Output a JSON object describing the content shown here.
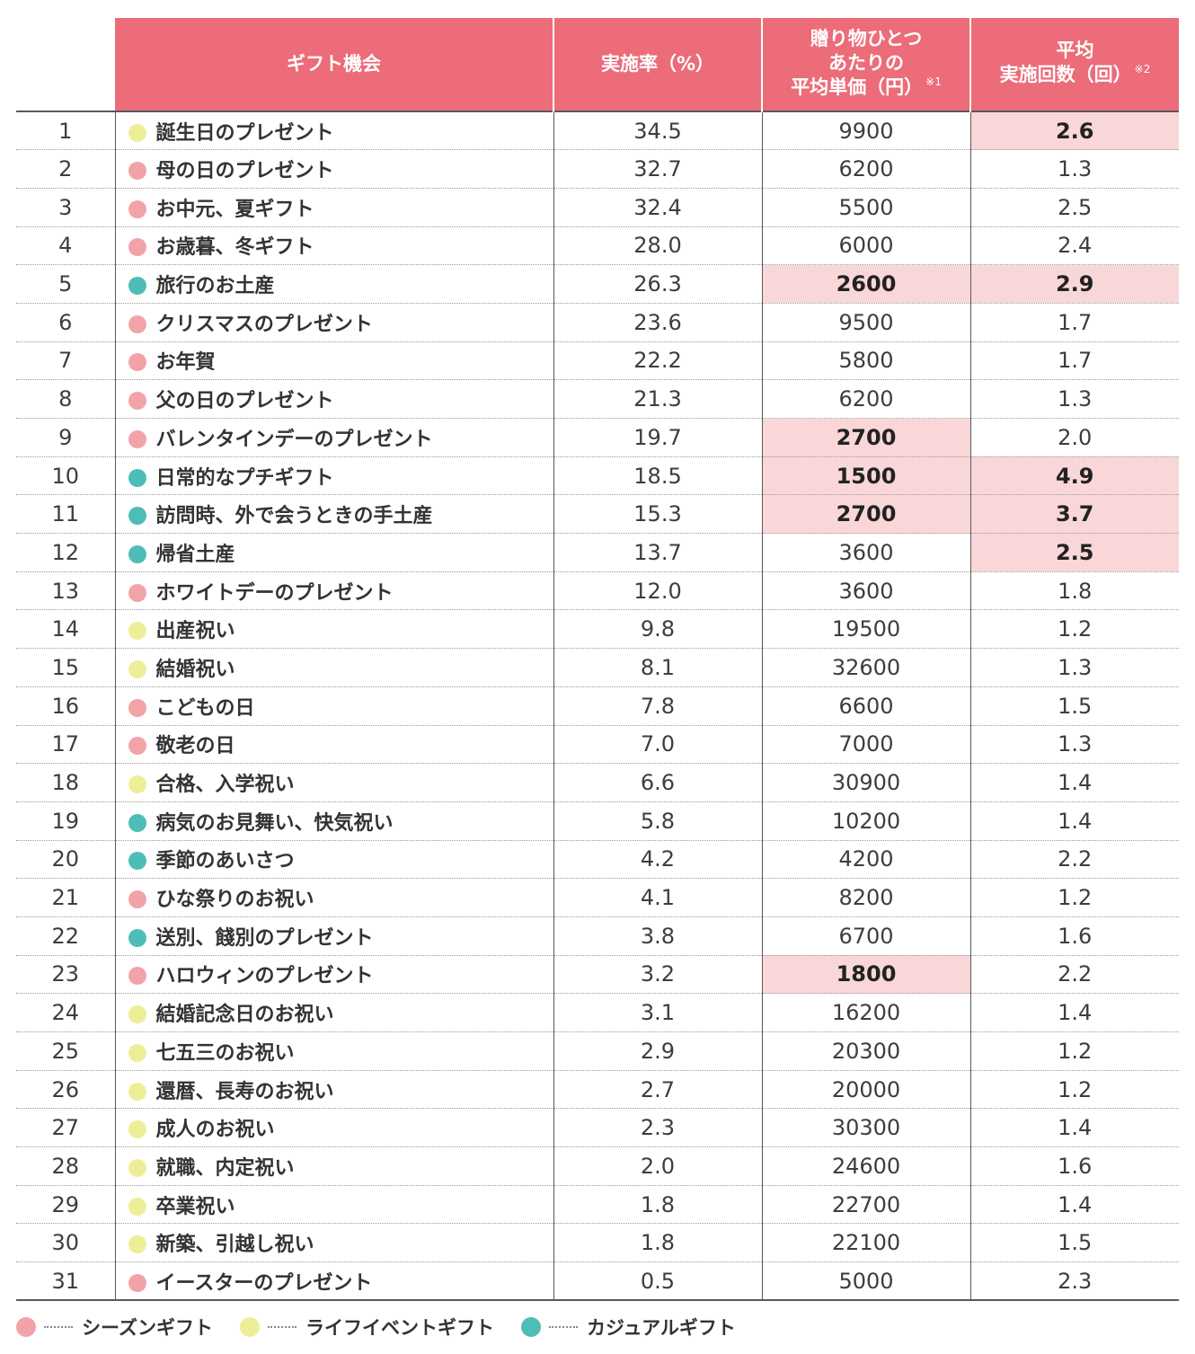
{
  "colors": {
    "header_bg": "#ec6c79",
    "highlight_bg": "#f9d7d9",
    "season": "#f2a3a7",
    "life": "#eeee98",
    "casual": "#4fbdb7"
  },
  "headers": {
    "name": "ギフト機会",
    "rate": "実施率（%）",
    "price_l1": "贈り物ひとつ",
    "price_l2": "あたりの",
    "price_l3": "平均単価（円）",
    "price_note": "※1",
    "count_l1": "平均",
    "count_l2": "実施回数（回）",
    "count_note": "※2"
  },
  "legend": [
    {
      "type": "season",
      "label": "シーズンギフト"
    },
    {
      "type": "life",
      "label": "ライフイベントギフト"
    },
    {
      "type": "casual",
      "label": "カジュアルギフト"
    }
  ],
  "chart_data": {
    "type": "table",
    "columns": [
      "",
      "ギフト機会",
      "実施率（%）",
      "贈り物ひとつあたりの平均単価（円）※1",
      "平均実施回数（回）※2"
    ],
    "rows": [
      {
        "rank": "1",
        "name": "誕生日のプレゼント",
        "type": "life",
        "rate": "34.5",
        "price": "9900",
        "count": "2.6",
        "hp": false,
        "hc": true
      },
      {
        "rank": "2",
        "name": "母の日のプレゼント",
        "type": "season",
        "rate": "32.7",
        "price": "6200",
        "count": "1.3",
        "hp": false,
        "hc": false
      },
      {
        "rank": "3",
        "name": "お中元、夏ギフト",
        "type": "season",
        "rate": "32.4",
        "price": "5500",
        "count": "2.5",
        "hp": false,
        "hc": false
      },
      {
        "rank": "4",
        "name": "お歳暮、冬ギフト",
        "type": "season",
        "rate": "28.0",
        "price": "6000",
        "count": "2.4",
        "hp": false,
        "hc": false
      },
      {
        "rank": "5",
        "name": "旅行のお土産",
        "type": "casual",
        "rate": "26.3",
        "price": "2600",
        "count": "2.9",
        "hp": true,
        "hc": true
      },
      {
        "rank": "6",
        "name": "クリスマスのプレゼント",
        "type": "season",
        "rate": "23.6",
        "price": "9500",
        "count": "1.7",
        "hp": false,
        "hc": false
      },
      {
        "rank": "7",
        "name": "お年賀",
        "type": "season",
        "rate": "22.2",
        "price": "5800",
        "count": "1.7",
        "hp": false,
        "hc": false
      },
      {
        "rank": "8",
        "name": "父の日のプレゼント",
        "type": "season",
        "rate": "21.3",
        "price": "6200",
        "count": "1.3",
        "hp": false,
        "hc": false
      },
      {
        "rank": "9",
        "name": "バレンタインデーのプレゼント",
        "type": "season",
        "rate": "19.7",
        "price": "2700",
        "count": "2.0",
        "hp": true,
        "hc": false
      },
      {
        "rank": "10",
        "name": "日常的なプチギフト",
        "type": "casual",
        "rate": "18.5",
        "price": "1500",
        "count": "4.9",
        "hp": true,
        "hc": true
      },
      {
        "rank": "11",
        "name": "訪問時、外で会うときの手土産",
        "type": "casual",
        "rate": "15.3",
        "price": "2700",
        "count": "3.7",
        "hp": true,
        "hc": true
      },
      {
        "rank": "12",
        "name": "帰省土産",
        "type": "casual",
        "rate": "13.7",
        "price": "3600",
        "count": "2.5",
        "hp": false,
        "hc": true
      },
      {
        "rank": "13",
        "name": "ホワイトデーのプレゼント",
        "type": "season",
        "rate": "12.0",
        "price": "3600",
        "count": "1.8",
        "hp": false,
        "hc": false
      },
      {
        "rank": "14",
        "name": "出産祝い",
        "type": "life",
        "rate": "9.8",
        "price": "19500",
        "count": "1.2",
        "hp": false,
        "hc": false
      },
      {
        "rank": "15",
        "name": "結婚祝い",
        "type": "life",
        "rate": "8.1",
        "price": "32600",
        "count": "1.3",
        "hp": false,
        "hc": false
      },
      {
        "rank": "16",
        "name": "こどもの日",
        "type": "season",
        "rate": "7.8",
        "price": "6600",
        "count": "1.5",
        "hp": false,
        "hc": false
      },
      {
        "rank": "17",
        "name": "敬老の日",
        "type": "season",
        "rate": "7.0",
        "price": "7000",
        "count": "1.3",
        "hp": false,
        "hc": false
      },
      {
        "rank": "18",
        "name": "合格、入学祝い",
        "type": "life",
        "rate": "6.6",
        "price": "30900",
        "count": "1.4",
        "hp": false,
        "hc": false
      },
      {
        "rank": "19",
        "name": "病気のお見舞い、快気祝い",
        "type": "casual",
        "rate": "5.8",
        "price": "10200",
        "count": "1.4",
        "hp": false,
        "hc": false
      },
      {
        "rank": "20",
        "name": "季節のあいさつ",
        "type": "casual",
        "rate": "4.2",
        "price": "4200",
        "count": "2.2",
        "hp": false,
        "hc": false
      },
      {
        "rank": "21",
        "name": "ひな祭りのお祝い",
        "type": "season",
        "rate": "4.1",
        "price": "8200",
        "count": "1.2",
        "hp": false,
        "hc": false
      },
      {
        "rank": "22",
        "name": "送別、餞別のプレゼント",
        "type": "casual",
        "rate": "3.8",
        "price": "6700",
        "count": "1.6",
        "hp": false,
        "hc": false
      },
      {
        "rank": "23",
        "name": "ハロウィンのプレゼント",
        "type": "season",
        "rate": "3.2",
        "price": "1800",
        "count": "2.2",
        "hp": true,
        "hc": false
      },
      {
        "rank": "24",
        "name": "結婚記念日のお祝い",
        "type": "life",
        "rate": "3.1",
        "price": "16200",
        "count": "1.4",
        "hp": false,
        "hc": false
      },
      {
        "rank": "25",
        "name": "七五三のお祝い",
        "type": "life",
        "rate": "2.9",
        "price": "20300",
        "count": "1.2",
        "hp": false,
        "hc": false
      },
      {
        "rank": "26",
        "name": "還暦、長寿のお祝い",
        "type": "life",
        "rate": "2.7",
        "price": "20000",
        "count": "1.2",
        "hp": false,
        "hc": false
      },
      {
        "rank": "27",
        "name": "成人のお祝い",
        "type": "life",
        "rate": "2.3",
        "price": "30300",
        "count": "1.4",
        "hp": false,
        "hc": false
      },
      {
        "rank": "28",
        "name": "就職、内定祝い",
        "type": "life",
        "rate": "2.0",
        "price": "24600",
        "count": "1.6",
        "hp": false,
        "hc": false
      },
      {
        "rank": "29",
        "name": "卒業祝い",
        "type": "life",
        "rate": "1.8",
        "price": "22700",
        "count": "1.4",
        "hp": false,
        "hc": false
      },
      {
        "rank": "30",
        "name": "新築、引越し祝い",
        "type": "life",
        "rate": "1.8",
        "price": "22100",
        "count": "1.5",
        "hp": false,
        "hc": false
      },
      {
        "rank": "31",
        "name": "イースターのプレゼント",
        "type": "season",
        "rate": "0.5",
        "price": "5000",
        "count": "2.3",
        "hp": false,
        "hc": false
      }
    ]
  }
}
